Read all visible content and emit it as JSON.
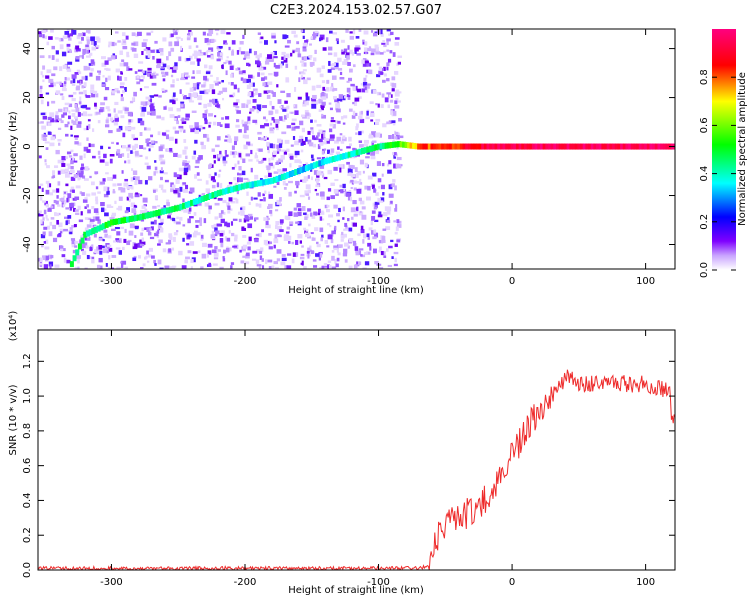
{
  "figure_title": "C2E3.2024.153.02.57.G07",
  "chart_data": [
    {
      "type": "heatmap",
      "title": "",
      "xlabel": "Height of straight line (km)",
      "ylabel": "Frequency (Hz)",
      "xlim": [
        -355,
        122
      ],
      "ylim": [
        -50,
        48
      ],
      "xticks": [
        -300,
        -200,
        -100,
        0,
        100
      ],
      "yticks": [
        -40,
        -20,
        0,
        20,
        40
      ],
      "grid": false,
      "colorbar": {
        "label": "Normalized spectral amplitude",
        "range": [
          0,
          1
        ],
        "ticks": [
          "0.0",
          "0.2",
          "0.4",
          "0.6",
          "0.8"
        ],
        "colors": [
          "#ffffff",
          "#7f00ff",
          "#0000ff",
          "#00ffff",
          "#00ff00",
          "#ffff00",
          "#ff0000",
          "#ff007f"
        ]
      },
      "data_extent_x": [
        -355,
        -85
      ],
      "tone_track": [
        {
          "x": -330,
          "y": -48,
          "a": 0.45
        },
        {
          "x": -320,
          "y": -36,
          "a": 0.45
        },
        {
          "x": -300,
          "y": -31,
          "a": 0.5
        },
        {
          "x": -280,
          "y": -29,
          "a": 0.45
        },
        {
          "x": -250,
          "y": -25,
          "a": 0.45
        },
        {
          "x": -220,
          "y": -19,
          "a": 0.4
        },
        {
          "x": -200,
          "y": -16,
          "a": 0.4
        },
        {
          "x": -180,
          "y": -14,
          "a": 0.35
        },
        {
          "x": -160,
          "y": -10,
          "a": 0.35
        },
        {
          "x": -140,
          "y": -6,
          "a": 0.35
        },
        {
          "x": -120,
          "y": -3,
          "a": 0.4
        },
        {
          "x": -100,
          "y": 0,
          "a": 0.45
        },
        {
          "x": -85,
          "y": 1,
          "a": 0.55
        },
        {
          "x": -70,
          "y": 0,
          "a": 0.8
        },
        {
          "x": -40,
          "y": 0,
          "a": 0.85
        },
        {
          "x": -10,
          "y": 0,
          "a": 0.95
        },
        {
          "x": 30,
          "y": 0,
          "a": 0.95
        },
        {
          "x": 122,
          "y": 0,
          "a": 0.95
        }
      ]
    },
    {
      "type": "line",
      "title": "",
      "xlabel": "Height of straight line (km)",
      "ylabel": "SNR (10 * v/v)",
      "exponent_label": "(x10⁴)",
      "xlim": [
        -355,
        122
      ],
      "ylim": [
        0,
        1.38
      ],
      "xticks": [
        -300,
        -200,
        -100,
        0,
        100
      ],
      "yticks": [
        0.0,
        0.2,
        0.4,
        0.6,
        0.8,
        1.0,
        1.2
      ],
      "ytick_labels": [
        "0.0",
        "0.2",
        "0.4",
        "0.6",
        "0.8",
        "1.0",
        "1.2"
      ],
      "grid": false,
      "series": [
        {
          "color": "#ee2b2b",
          "x": [
            -355,
            -300,
            -250,
            -200,
            -150,
            -100,
            -80,
            -70,
            -62,
            -60,
            -55,
            -45,
            -35,
            -25,
            -15,
            -10,
            -5,
            0,
            5,
            10,
            20,
            30,
            38,
            40,
            50,
            70,
            90,
            100,
            110,
            118,
            120,
            122
          ],
          "y": [
            0.01,
            0.01,
            0.01,
            0.01,
            0.01,
            0.01,
            0.01,
            0.01,
            0.02,
            0.1,
            0.22,
            0.28,
            0.32,
            0.38,
            0.42,
            0.5,
            0.58,
            0.68,
            0.72,
            0.8,
            0.9,
            1.0,
            1.08,
            1.12,
            1.07,
            1.07,
            1.07,
            1.07,
            1.05,
            1.03,
            0.85,
            0.88
          ]
        }
      ]
    }
  ]
}
